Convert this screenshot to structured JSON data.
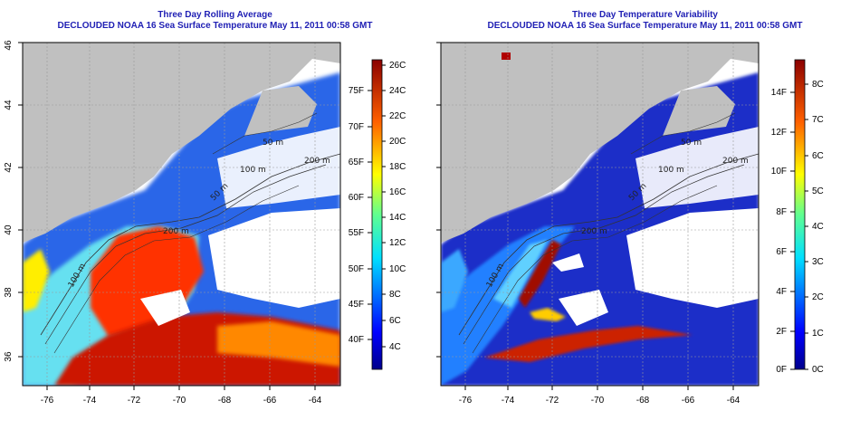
{
  "left": {
    "title": "Three Day Rolling Average",
    "subtitle": "DECLOUDED NOAA 16 Sea Surface Temperature May 11, 2011 00:58 GMT",
    "x_ticks": [
      "-76",
      "-74",
      "-72",
      "-70",
      "-68",
      "-66",
      "-64"
    ],
    "y_ticks": [
      "36",
      "38",
      "40",
      "42",
      "44",
      "46"
    ],
    "colorbar_f": [
      "40F",
      "45F",
      "50F",
      "55F",
      "60F",
      "65F",
      "70F",
      "75F"
    ],
    "colorbar_c": [
      "4C",
      "6C",
      "8C",
      "10C",
      "12C",
      "14C",
      "16C",
      "18C",
      "20C",
      "22C",
      "24C",
      "26C"
    ],
    "contour_labels": [
      "100 m",
      "200 m",
      "50 m",
      "100 m",
      "200 m",
      "50 m"
    ]
  },
  "right": {
    "title": "Three Day Temperature Variability",
    "subtitle": "DECLOUDED NOAA 16 Sea Surface Temperature May 11, 2011 00:58 GMT",
    "x_ticks": [
      "-76",
      "-74",
      "-72",
      "-70",
      "-68",
      "-66",
      "-64"
    ],
    "y_ticks": [
      "36",
      "38",
      "40",
      "42",
      "44",
      "46"
    ],
    "colorbar_f": [
      "0F",
      "2F",
      "4F",
      "6F",
      "8F",
      "10F",
      "12F",
      "14F"
    ],
    "colorbar_c": [
      "0C",
      "1C",
      "2C",
      "3C",
      "4C",
      "5C",
      "6C",
      "7C",
      "8C"
    ],
    "contour_labels": [
      "100 m",
      "200 m",
      "50 m",
      "100 m",
      "200 m",
      "50 m"
    ]
  },
  "colors": {
    "title": "#1f1fb4",
    "land": "#c0c0c0",
    "cloud": "#ffffff",
    "jet_low": "#00008b",
    "jet_high": "#8b0000"
  }
}
